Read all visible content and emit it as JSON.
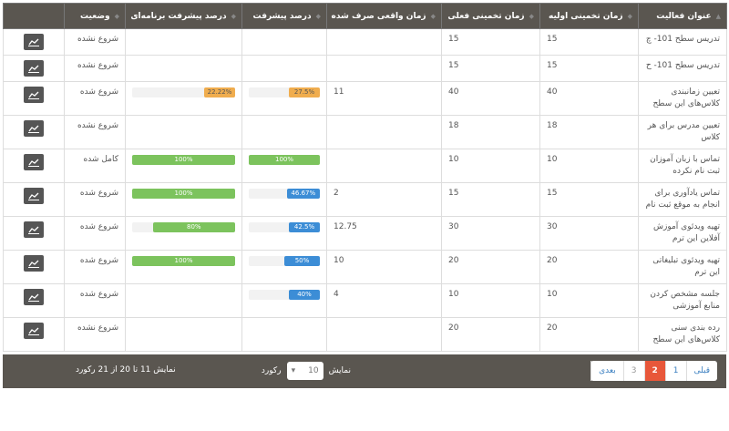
{
  "headers": [
    "عنوان فعالیت",
    "زمان تخمینی اولیه",
    "زمان تخمینی فعلی",
    "زمان واقعی صرف شده",
    "درصد پیشرفت",
    "درصد پیشرفت برنامه‌ای",
    "وضعیت",
    ""
  ],
  "colors": {
    "orange": "#f0ad4e",
    "blue": "#3c8dd6",
    "green": "#7cc35d",
    "header": "#5a5650",
    "active_page": "#e8573a"
  },
  "rows": [
    {
      "title": "تدریس سطح 101- چ",
      "initial": "15",
      "current": "15",
      "actual": "",
      "progress": null,
      "planned": null,
      "status": "شروع نشده"
    },
    {
      "title": "تدریس سطح 101- ح",
      "initial": "15",
      "current": "15",
      "actual": "",
      "progress": null,
      "planned": null,
      "status": "شروع نشده"
    },
    {
      "title": "تعیین زمانبندی کلاس‌های این سطح",
      "initial": "40",
      "current": "40",
      "actual": "11",
      "progress": {
        "label": "27.5%",
        "value": 27.5,
        "color": "orange"
      },
      "planned": {
        "label": "22.22%",
        "value": 22.22,
        "color": "orange"
      },
      "status": "شروع شده"
    },
    {
      "title": "تعیین مدرس برای هر کلاس",
      "initial": "18",
      "current": "18",
      "actual": "",
      "progress": null,
      "planned": null,
      "status": "شروع نشده"
    },
    {
      "title": "تماس با زبان آموزان ثبت نام نکرده",
      "initial": "10",
      "current": "10",
      "actual": "",
      "progress": {
        "label": "100%",
        "value": 100,
        "color": "green"
      },
      "planned": {
        "label": "100%",
        "value": 100,
        "color": "green"
      },
      "status": "کامل شده"
    },
    {
      "title": "تماس یادآوری برای انجام به موقع ثبت نام",
      "initial": "15",
      "current": "15",
      "actual": "2",
      "progress": {
        "label": "46.67%",
        "value": 46.67,
        "color": "blue"
      },
      "planned": {
        "label": "100%",
        "value": 100,
        "color": "green"
      },
      "status": "شروع شده"
    },
    {
      "title": "تهیه ویدئوی آموزش آفلاین این ترم",
      "initial": "30",
      "current": "30",
      "actual": "12.75",
      "progress": {
        "label": "42.5%",
        "value": 42.5,
        "color": "blue"
      },
      "planned": {
        "label": "80%",
        "value": 80,
        "color": "green"
      },
      "status": "شروع شده"
    },
    {
      "title": "تهیه ویدئوی تبلیغاتی این ترم",
      "initial": "20",
      "current": "20",
      "actual": "10",
      "progress": {
        "label": "50%",
        "value": 50,
        "color": "blue"
      },
      "planned": {
        "label": "100%",
        "value": 100,
        "color": "green"
      },
      "status": "شروع شده"
    },
    {
      "title": "جلسه مشخص کردن منابع آموزشی",
      "initial": "10",
      "current": "10",
      "actual": "4",
      "progress": {
        "label": "40%",
        "value": 40,
        "color": "blue"
      },
      "planned": null,
      "status": "شروع شده"
    },
    {
      "title": "رده بندی سنی کلاس‌های این سطح",
      "initial": "20",
      "current": "20",
      "actual": "",
      "progress": null,
      "planned": null,
      "status": "شروع نشده"
    }
  ],
  "footer": {
    "pages": [
      "قبلی",
      "1",
      "2",
      "3",
      "بعدی"
    ],
    "active_page": "2",
    "show_label": "نمایش",
    "page_size": "10",
    "records_label": "رکورد",
    "info": "نمایش 11 تا 20 از 21 رکورد"
  }
}
